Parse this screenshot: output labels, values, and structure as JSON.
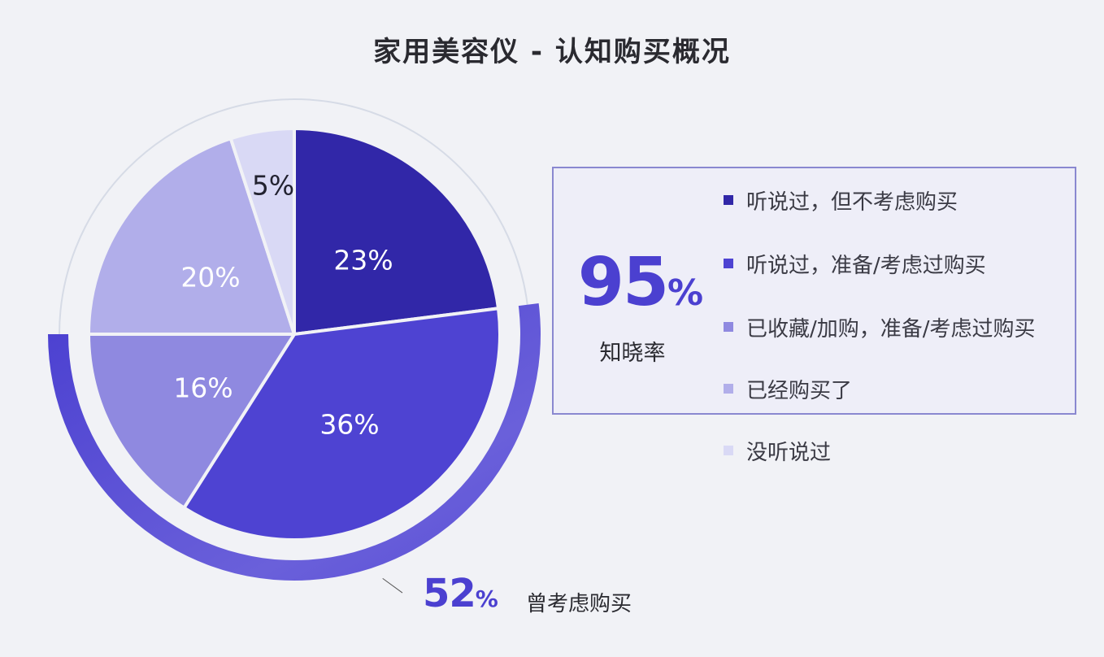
{
  "title": "家用美容仪 - 认知购买概况",
  "colors": {
    "background": "#f1f2f6",
    "accent": "#4b40d0",
    "box_border": "#8a88d0"
  },
  "awareness": {
    "value": "95",
    "sign": "%",
    "label": "知晓率"
  },
  "considered": {
    "value": "52",
    "sign": "%",
    "label": "曾考虑购买"
  },
  "legend": [
    {
      "label": "听说过，但不考虑购买",
      "color": "#3127a8"
    },
    {
      "label": "听说过，准备/考虑过购买",
      "color": "#4e43d2"
    },
    {
      "label": "已收藏/加购，准备/考虑过购买",
      "color": "#8f89e0"
    },
    {
      "label": "已经购买了",
      "color": "#b1aeea"
    },
    {
      "label": "没听说过",
      "color": "#d9d9f5"
    }
  ],
  "slices": [
    {
      "label": "23%"
    },
    {
      "label": "36%"
    },
    {
      "label": "16%"
    },
    {
      "label": "20%"
    },
    {
      "label": "5%"
    }
  ],
  "chart_data": {
    "type": "pie",
    "title": "家用美容仪 - 认知购买概况",
    "categories": [
      "听说过，但不考虑购买",
      "听说过，准备/考虑过购买",
      "已收藏/加购，准备/考虑过购买",
      "已经购买了",
      "没听说过"
    ],
    "values": [
      23,
      36,
      16,
      20,
      5
    ],
    "unit": "%",
    "colors": [
      "#3127a8",
      "#4e43d2",
      "#8f89e0",
      "#b1aeea",
      "#d9d9f5"
    ],
    "annotations": [
      {
        "text": "95% 知晓率",
        "value": 95,
        "meaning": "awareness rate (sum of all heard-of categories)"
      },
      {
        "text": "52% 曾考虑购买",
        "value": 52,
        "meaning": "outer arc spanning 36% + 16% slices"
      }
    ],
    "legend_position": "right"
  }
}
